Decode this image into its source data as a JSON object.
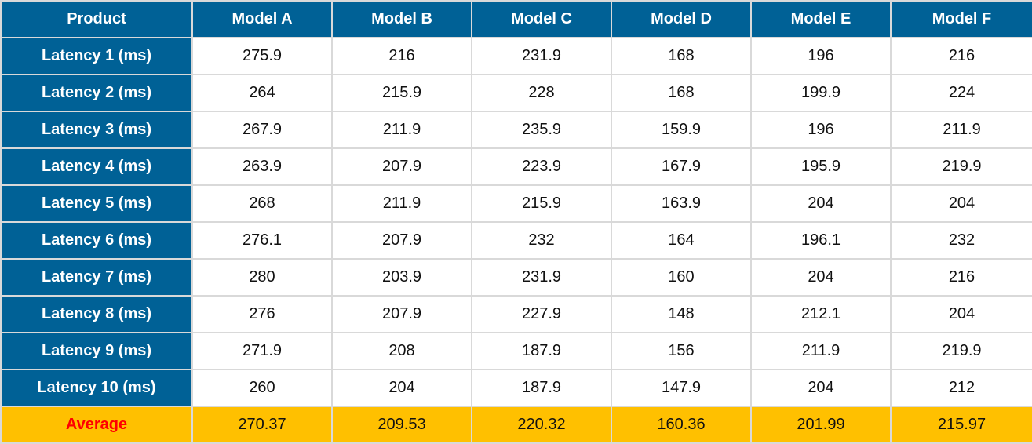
{
  "chart_data": {
    "type": "table",
    "columns": [
      "Product",
      "Model A",
      "Model B",
      "Model C",
      "Model D",
      "Model E",
      "Model F"
    ],
    "rows": [
      {
        "label": "Latency 1 (ms)",
        "values": [
          "275.9",
          "216",
          "231.9",
          "168",
          "196",
          "216"
        ]
      },
      {
        "label": "Latency 2 (ms)",
        "values": [
          "264",
          "215.9",
          "228",
          "168",
          "199.9",
          "224"
        ]
      },
      {
        "label": "Latency 3 (ms)",
        "values": [
          "267.9",
          "211.9",
          "235.9",
          "159.9",
          "196",
          "211.9"
        ]
      },
      {
        "label": "Latency 4 (ms)",
        "values": [
          "263.9",
          "207.9",
          "223.9",
          "167.9",
          "195.9",
          "219.9"
        ]
      },
      {
        "label": "Latency 5 (ms)",
        "values": [
          "268",
          "211.9",
          "215.9",
          "163.9",
          "204",
          "204"
        ]
      },
      {
        "label": "Latency 6 (ms)",
        "values": [
          "276.1",
          "207.9",
          "232",
          "164",
          "196.1",
          "232"
        ]
      },
      {
        "label": "Latency 7 (ms)",
        "values": [
          "280",
          "203.9",
          "231.9",
          "160",
          "204",
          "216"
        ]
      },
      {
        "label": "Latency 8 (ms)",
        "values": [
          "276",
          "207.9",
          "227.9",
          "148",
          "212.1",
          "204"
        ]
      },
      {
        "label": "Latency 9 (ms)",
        "values": [
          "271.9",
          "208",
          "187.9",
          "156",
          "211.9",
          "219.9"
        ]
      },
      {
        "label": "Latency 10 (ms)",
        "values": [
          "260",
          "204",
          "187.9",
          "147.9",
          "204",
          "212"
        ]
      }
    ],
    "footer": {
      "label": "Average",
      "values": [
        "270.37",
        "209.53",
        "220.32",
        "160.36",
        "201.99",
        "215.97"
      ]
    }
  },
  "colors": {
    "header_bg": "#006196",
    "header_text": "#ffffff",
    "cell_bg": "#ffffff",
    "footer_bg": "#ffc000",
    "footer_label_text": "#ff0000",
    "border": "#d9d9d9"
  }
}
